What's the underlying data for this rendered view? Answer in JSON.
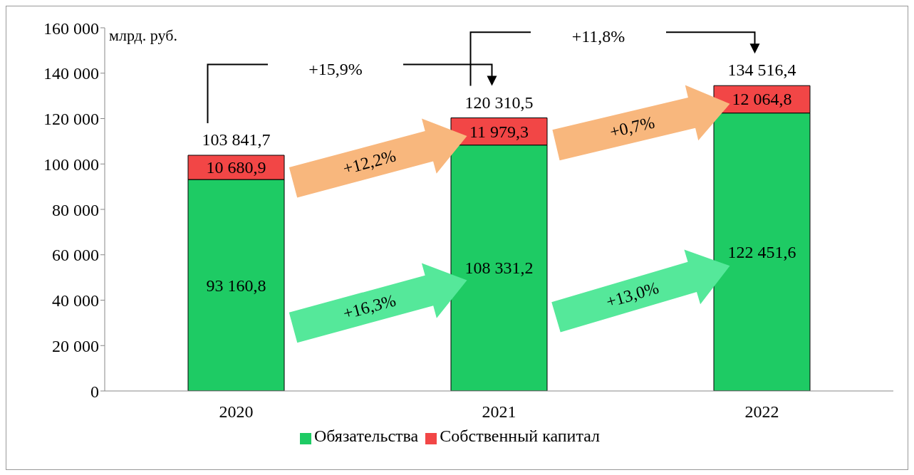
{
  "chart_data": {
    "type": "bar",
    "stacked": true,
    "ylabel": "млрд. руб.",
    "categories": [
      "2020",
      "2021",
      "2022"
    ],
    "series": [
      {
        "name": "Обязательства",
        "color": "#1ecb64",
        "values": [
          93160.8,
          108331.2,
          122451.6
        ],
        "value_labels": [
          "93 160,8",
          "108 331,2",
          "122 451,6"
        ]
      },
      {
        "name": "Собственный капитал",
        "color": "#f24646",
        "values": [
          10680.9,
          11979.3,
          12064.8
        ],
        "value_labels": [
          "10 680,9",
          "11 979,3",
          "12 064,8"
        ]
      }
    ],
    "totals": [
      "103 841,7",
      "120 310,5",
      "134 516,4"
    ],
    "ylim": [
      0,
      160000
    ],
    "yticks": [
      {
        "value": 0,
        "label": "0"
      },
      {
        "value": 20000,
        "label": "20 000"
      },
      {
        "value": 40000,
        "label": "40 000"
      },
      {
        "value": 60000,
        "label": "60 000"
      },
      {
        "value": 80000,
        "label": "80 000"
      },
      {
        "value": 100000,
        "label": "100 000"
      },
      {
        "value": 120000,
        "label": "120 000"
      },
      {
        "value": 140000,
        "label": "140 000"
      },
      {
        "value": 160000,
        "label": "160 000"
      }
    ],
    "grid": false,
    "legend": "bottom",
    "annotations": [
      "+15,9%",
      "+11,8%",
      "+12,2%",
      "+0,7%",
      "+16,3%",
      "+13,0%"
    ]
  }
}
